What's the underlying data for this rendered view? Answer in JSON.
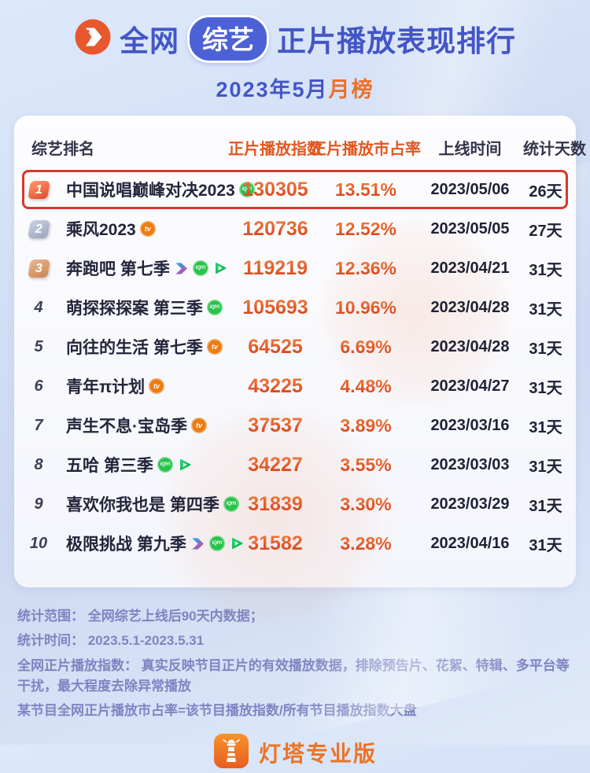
{
  "header": {
    "title_prefix": "全网",
    "title_tag": "综艺",
    "title_suffix": "正片播放表现排行",
    "subtitle_main": "2023年5月",
    "subtitle_accent": "月榜"
  },
  "chart_data": {
    "type": "table",
    "title": "全网综艺正片播放表现排行",
    "period": "2023年5月月榜",
    "columns": [
      "综艺排名",
      "正片播放指数",
      "正片播放市占率",
      "上线时间",
      "统计天数"
    ],
    "rows": [
      {
        "rank": "1",
        "title": "中国说唱巅峰对决2023",
        "platforms": [
          "iqiyi"
        ],
        "index": "130305",
        "share": "13.51%",
        "online_date": "2023/05/06",
        "days": "26天",
        "highlight": true
      },
      {
        "rank": "2",
        "title": "乘风2023",
        "platforms": [
          "mgtv"
        ],
        "index": "120736",
        "share": "12.52%",
        "online_date": "2023/05/05",
        "days": "27天",
        "highlight": false
      },
      {
        "rank": "3",
        "title": "奔跑吧 第七季",
        "platforms": [
          "youku",
          "iqiyi",
          "tencent"
        ],
        "index": "119219",
        "share": "12.36%",
        "online_date": "2023/04/21",
        "days": "31天",
        "highlight": false
      },
      {
        "rank": "4",
        "title": "萌探探探案 第三季",
        "platforms": [
          "iqiyi"
        ],
        "index": "105693",
        "share": "10.96%",
        "online_date": "2023/04/28",
        "days": "31天",
        "highlight": false
      },
      {
        "rank": "5",
        "title": "向往的生活 第七季",
        "platforms": [
          "mgtv"
        ],
        "index": "64525",
        "share": "6.69%",
        "online_date": "2023/04/28",
        "days": "31天",
        "highlight": false
      },
      {
        "rank": "6",
        "title": "青年π计划",
        "platforms": [
          "mgtv"
        ],
        "index": "43225",
        "share": "4.48%",
        "online_date": "2023/04/27",
        "days": "31天",
        "highlight": false
      },
      {
        "rank": "7",
        "title": "声生不息·宝岛季",
        "platforms": [
          "mgtv"
        ],
        "index": "37537",
        "share": "3.89%",
        "online_date": "2023/03/16",
        "days": "31天",
        "highlight": false
      },
      {
        "rank": "8",
        "title": "五哈 第三季",
        "platforms": [
          "iqiyi",
          "tencent"
        ],
        "index": "34227",
        "share": "3.55%",
        "online_date": "2023/03/03",
        "days": "31天",
        "highlight": false
      },
      {
        "rank": "9",
        "title": "喜欢你我也是 第四季",
        "platforms": [
          "iqiyi"
        ],
        "index": "31839",
        "share": "3.30%",
        "online_date": "2023/03/29",
        "days": "31天",
        "highlight": false
      },
      {
        "rank": "10",
        "title": "极限挑战 第九季",
        "platforms": [
          "youku",
          "iqiyi",
          "tencent"
        ],
        "index": "31582",
        "share": "3.28%",
        "online_date": "2023/04/16",
        "days": "31天",
        "highlight": false
      }
    ]
  },
  "platform_icon_labels": {
    "iqiyi": "iQIYI",
    "mgtv": "tv"
  },
  "footer": {
    "notes": [
      "统计范围： 全网综艺上线后90天内数据；",
      "统计时间： 2023.5.1-2023.5.31",
      "全网正片播放指数： 真实反映节目正片的有效播放数据，排除预告片、花絮、特辑、多平台等干扰，最大程度去除异常播放",
      "某节目全网正片播放市占率=该节目播放指数/所有节目播放指数大盘"
    ],
    "brand": "灯塔专业版"
  },
  "colors": {
    "accent_orange": "#e2571f",
    "number_orange": "#d63e1a",
    "title_blue": "#4356c6",
    "highlight_red": "#d8382a",
    "iqiyi_green": "#29c24a",
    "mgtv_orange": "#ec7c12",
    "tencent_green": "#12c465",
    "youku_blue": "#00b9ff",
    "youku_pink": "#ff2f92",
    "brand_orange": "#ee7322"
  }
}
